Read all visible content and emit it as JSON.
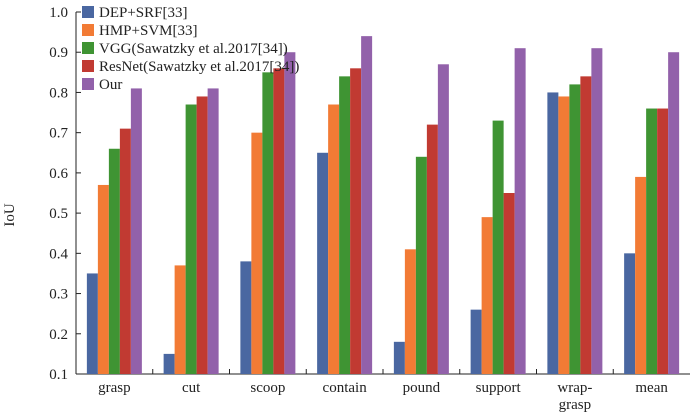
{
  "chart_data": {
    "type": "bar",
    "title": "",
    "xlabel": "",
    "ylabel": "IoU",
    "ylim": [
      0.1,
      1.0
    ],
    "yticks": [
      "0.1",
      "0.2",
      "0.3",
      "0.4",
      "0.5",
      "0.6",
      "0.7",
      "0.8",
      "0.9",
      "1.0"
    ],
    "categories": [
      [
        "grasp"
      ],
      [
        "cut"
      ],
      [
        "scoop"
      ],
      [
        "contain"
      ],
      [
        "pound"
      ],
      [
        "support"
      ],
      [
        "wrap-",
        "grasp"
      ],
      [
        "mean"
      ]
    ],
    "series": [
      {
        "name": "DEP+SRF[33]",
        "color": "#4a67a1",
        "values": [
          0.35,
          0.15,
          0.38,
          0.65,
          0.18,
          0.26,
          0.8,
          0.4
        ]
      },
      {
        "name": "HMP+SVM[33]",
        "color": "#f27b35",
        "values": [
          0.57,
          0.37,
          0.7,
          0.77,
          0.41,
          0.49,
          0.79,
          0.59
        ]
      },
      {
        "name": "VGG(Sawatzky et al.2017[34])",
        "color": "#3f9433",
        "values": [
          0.66,
          0.77,
          0.85,
          0.84,
          0.64,
          0.73,
          0.82,
          0.76
        ]
      },
      {
        "name": "ResNet(Sawatzky et al.2017[34])",
        "color": "#c13a32",
        "values": [
          0.71,
          0.79,
          0.86,
          0.86,
          0.72,
          0.55,
          0.84,
          0.76
        ]
      },
      {
        "name": "Our",
        "color": "#9261aa",
        "values": [
          0.81,
          0.81,
          0.9,
          0.94,
          0.87,
          0.91,
          0.91,
          0.9
        ]
      }
    ],
    "legend_position": "top-left",
    "grid": false
  }
}
